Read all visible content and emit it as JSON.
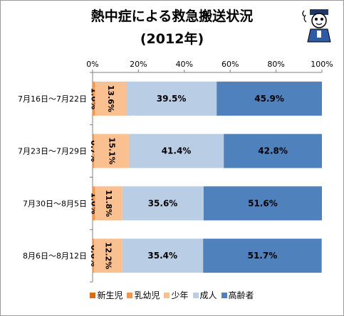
{
  "title": {
    "line1": "熱中症による救急搬送状況",
    "line2": "(2012年)"
  },
  "mascot_icon": "doctor-mascot-icon",
  "chart_data": {
    "type": "bar",
    "orientation": "horizontal",
    "stacked": "percent",
    "categories": [
      "7月16日～7月22日",
      "7月23日～7月29日",
      "7月30日～8月5日",
      "8月6日～8月12日"
    ],
    "series": [
      {
        "name": "新生児",
        "values": [
          0.0,
          0.0,
          0.0,
          0.0
        ],
        "color": "#e36c09"
      },
      {
        "name": "乳幼児",
        "values": [
          1.0,
          0.7,
          1.0,
          0.6
        ],
        "color": "#f79646"
      },
      {
        "name": "少年",
        "values": [
          13.6,
          15.1,
          11.8,
          12.2
        ],
        "color": "#fac090"
      },
      {
        "name": "成人",
        "values": [
          39.5,
          41.4,
          35.6,
          35.4
        ],
        "color": "#b9cde5"
      },
      {
        "name": "高齢者",
        "values": [
          45.9,
          42.8,
          51.6,
          51.7
        ],
        "color": "#4f81bd"
      }
    ],
    "data_labels": [
      [
        "",
        "1.0%",
        "13.6%",
        "39.5%",
        "45.9%"
      ],
      [
        "",
        "0.7%",
        "15.1%",
        "41.4%",
        "42.8%"
      ],
      [
        "",
        "1.0%",
        "11.8%",
        "35.6%",
        "51.6%"
      ],
      [
        "",
        "0.6%",
        "12.2%",
        "35.4%",
        "51.7%"
      ]
    ],
    "x_ticks": [
      "0%",
      "20%",
      "40%",
      "60%",
      "80%",
      "100%"
    ],
    "xlim": [
      0,
      100
    ],
    "axis_position": "top",
    "grid": false,
    "legend": "bottom"
  }
}
